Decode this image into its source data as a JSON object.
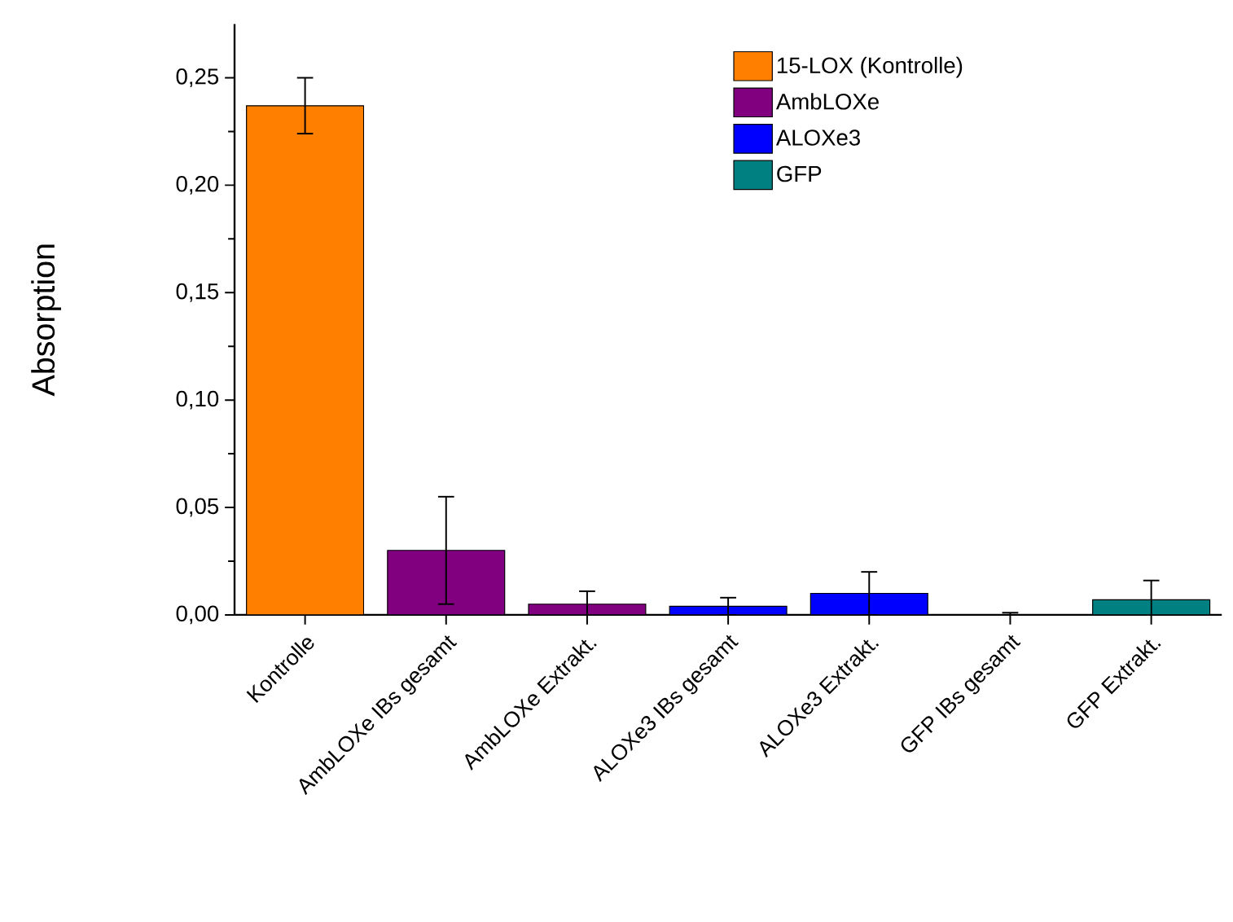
{
  "chart_data": {
    "type": "bar",
    "ylabel": "Absorption",
    "categories": [
      "Kontrolle",
      "AmbLOXe IBs gesamt",
      "AmbLOXe Extrakt.",
      "ALOXe3 IBs gesamt",
      "ALOXe3 Extrakt.",
      "GFP IBs gesamt",
      "GFP Extrakt."
    ],
    "series": [
      {
        "name": "15-LOX (Kontrolle)",
        "color": "#ff8000",
        "values": [
          0.237,
          null,
          null,
          null,
          null,
          null,
          null
        ],
        "errors": [
          0.013,
          null,
          null,
          null,
          null,
          null,
          null
        ]
      },
      {
        "name": "AmbLOXe",
        "color": "#800080",
        "values": [
          null,
          0.03,
          0.005,
          null,
          null,
          null,
          null
        ],
        "errors": [
          null,
          0.025,
          0.006,
          null,
          null,
          null,
          null
        ]
      },
      {
        "name": "ALOXe3",
        "color": "#0000ff",
        "values": [
          null,
          null,
          null,
          0.004,
          0.01,
          null,
          null
        ],
        "errors": [
          null,
          null,
          null,
          0.004,
          0.01,
          null,
          null
        ]
      },
      {
        "name": "GFP",
        "color": "#008080",
        "values": [
          null,
          null,
          null,
          null,
          null,
          0,
          0.007
        ],
        "errors": [
          null,
          null,
          null,
          null,
          null,
          0.001,
          0.009
        ]
      }
    ],
    "ylim": [
      0,
      0.275
    ],
    "yticks": [
      {
        "value": 0,
        "label": "0,00"
      },
      {
        "value": 0.025,
        "label": null
      },
      {
        "value": 0.05,
        "label": "0,05"
      },
      {
        "value": 0.075,
        "label": null
      },
      {
        "value": 0.1,
        "label": "0,10"
      },
      {
        "value": 0.125,
        "label": null
      },
      {
        "value": 0.15,
        "label": "0,15"
      },
      {
        "value": 0.175,
        "label": null
      },
      {
        "value": 0.2,
        "label": "0,20"
      },
      {
        "value": 0.225,
        "label": null
      },
      {
        "value": 0.25,
        "label": "0,25"
      }
    ],
    "legend": "top right"
  }
}
